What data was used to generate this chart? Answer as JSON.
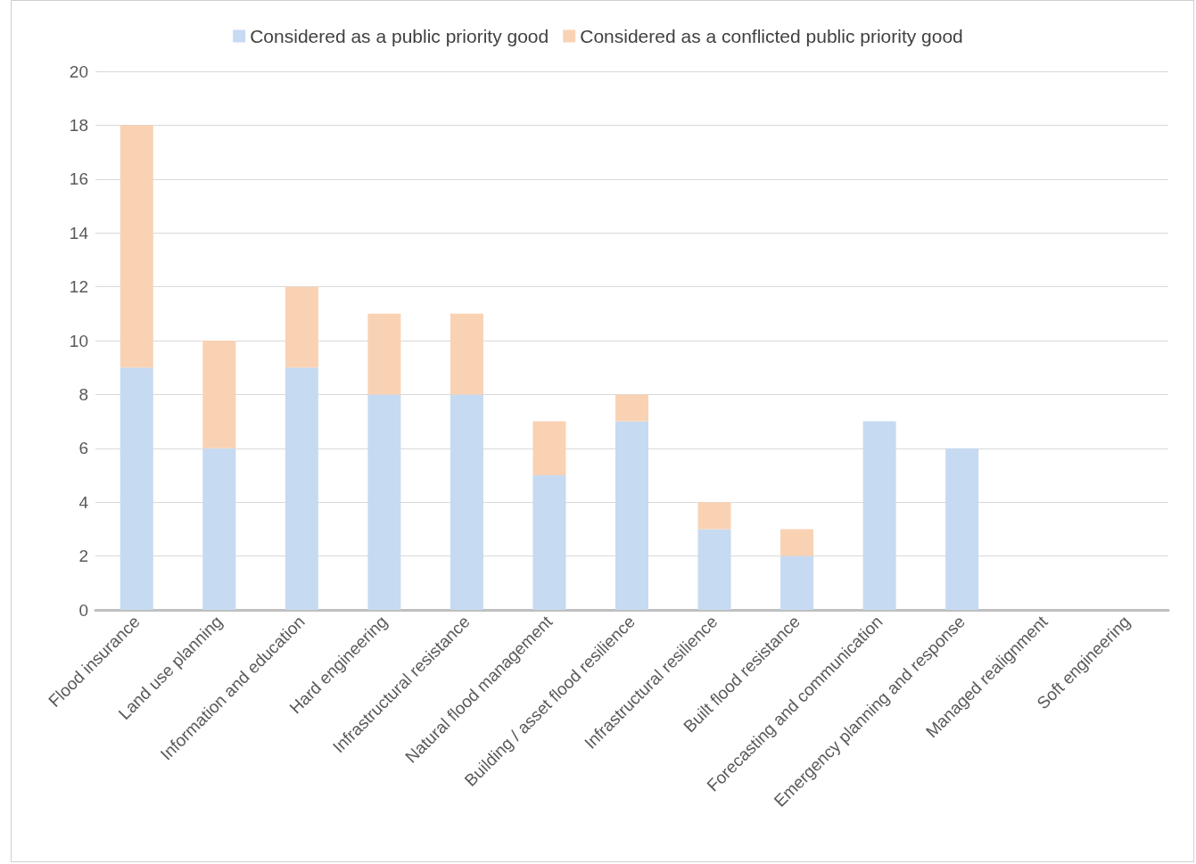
{
  "chart_data": {
    "type": "bar",
    "stacked": true,
    "categories": [
      "Flood insurance",
      "Land use planning",
      "Information and education",
      "Hard engineering",
      "Infrastructural resistance",
      "Natural flood management",
      "Building / asset flood resilience",
      "Infrastructural resilience",
      "Built flood resistance",
      "Forecasting and communication",
      "Emergency planning and response",
      "Managed realignment",
      "Soft engineering"
    ],
    "series": [
      {
        "name": "Considered as a public priority good",
        "color": "#c6daf1",
        "values": [
          9,
          6,
          9,
          8,
          8,
          5,
          7,
          3,
          2,
          7,
          6,
          0,
          0
        ]
      },
      {
        "name": "Considered as a conflicted public priority good",
        "color": "#f9d2b4",
        "values": [
          9,
          4,
          3,
          3,
          3,
          2,
          1,
          1,
          1,
          0,
          0,
          0,
          0
        ]
      }
    ],
    "ylim": [
      0,
      20
    ],
    "yticks": [
      0,
      2,
      4,
      6,
      8,
      10,
      12,
      14,
      16,
      18,
      20
    ],
    "grid": "y",
    "legend": "top"
  }
}
